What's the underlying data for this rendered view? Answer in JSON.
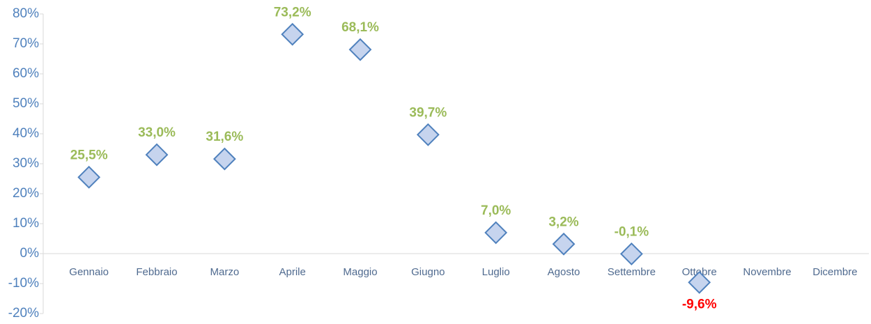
{
  "chart_data": {
    "type": "scatter",
    "categories": [
      "Gennaio",
      "Febbraio",
      "Marzo",
      "Aprile",
      "Maggio",
      "Giugno",
      "Luglio",
      "Agosto",
      "Settembre",
      "Ottobre",
      "Novembre",
      "Dicembre"
    ],
    "values": [
      25.5,
      33.0,
      31.6,
      73.2,
      68.1,
      39.7,
      7.0,
      3.2,
      -0.1,
      -9.6,
      null,
      null
    ],
    "value_labels": [
      "25,5%",
      "33,0%",
      "31,6%",
      "73,2%",
      "68,1%",
      "39,7%",
      "7,0%",
      "3,2%",
      "-0,1%",
      "-9,6%",
      null,
      null
    ],
    "value_label_colors": [
      "#9bbb59",
      "#9bbb59",
      "#9bbb59",
      "#9bbb59",
      "#9bbb59",
      "#9bbb59",
      "#9bbb59",
      "#9bbb59",
      "#9bbb59",
      "#ff0000",
      null,
      null
    ],
    "value_label_positions": [
      "above",
      "above",
      "above",
      "above",
      "above",
      "above",
      "above",
      "above",
      "above",
      "below",
      null,
      null
    ],
    "marker": "diamond",
    "marker_fill": "#c6d4ee",
    "marker_stroke": "#4f81bd",
    "ylim": [
      -20,
      80
    ],
    "yticks": [
      {
        "value": -20,
        "label": "-20%"
      },
      {
        "value": -10,
        "label": "-10%"
      },
      {
        "value": 0,
        "label": "0%"
      },
      {
        "value": 10,
        "label": "10%"
      },
      {
        "value": 20,
        "label": "20%"
      },
      {
        "value": 30,
        "label": "30%"
      },
      {
        "value": 40,
        "label": "40%"
      },
      {
        "value": 50,
        "label": "50%"
      },
      {
        "value": 60,
        "label": "60%"
      },
      {
        "value": 70,
        "label": "70%"
      },
      {
        "value": 80,
        "label": "80%"
      }
    ],
    "grid": false
  }
}
